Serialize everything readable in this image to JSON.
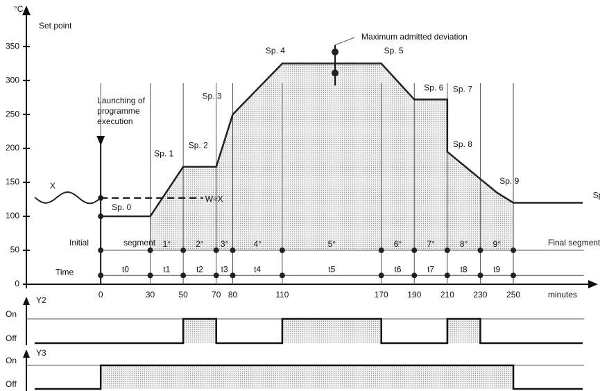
{
  "chart_data": {
    "type": "line",
    "y_unit": "°C",
    "y_label": "Set point",
    "x_label": "minutes",
    "xlim": [
      -40,
      292
    ],
    "ylim": [
      0,
      393
    ],
    "xticks": [
      0,
      30,
      50,
      70,
      80,
      110,
      170,
      190,
      210,
      230,
      250
    ],
    "yticks": [
      0,
      50,
      100,
      150,
      200,
      250,
      300,
      350
    ],
    "series": [
      {
        "name": "Set point",
        "color": "#222222",
        "x": [
          0,
          30,
          50,
          70,
          80,
          110,
          170,
          190,
          210,
          210,
          240,
          250,
          292
        ],
        "values": [
          100,
          100,
          173,
          173,
          250,
          325,
          325,
          272,
          272,
          195,
          135,
          120,
          120
        ],
        "point_labels": [
          "Sp. 0",
          null,
          "Sp. 1",
          "Sp. 2",
          "Sp. 3",
          "Sp. 4",
          "Sp. 5",
          "Sp. 6",
          "Sp. 7",
          "Sp. 8",
          "Sp. 9",
          null,
          "Sp. F."
        ]
      }
    ],
    "process_value": {
      "name": "X",
      "label": "W≈X",
      "x": [
        -40,
        0,
        62
      ],
      "values": [
        128,
        127,
        127
      ]
    },
    "deviation": {
      "label": "Maximum admitted deviation",
      "x": 142,
      "upper": 342,
      "center": 325,
      "lower": 311
    },
    "launch": {
      "label": [
        "Launching of",
        "programme",
        "execution"
      ],
      "x": 0
    },
    "segment_row": {
      "value": 50,
      "start_label": "Initial",
      "start_label2": "segment",
      "end_label": "Final segment",
      "labels": [
        "1°",
        "2°",
        "3°",
        "4°",
        "5°",
        "6°",
        "7°",
        "8°",
        "9°"
      ]
    },
    "time_row": {
      "value": 13,
      "label": "Time",
      "labels": [
        "t0",
        "t1",
        "t2",
        "t3",
        "t4",
        "t5",
        "t6",
        "t7",
        "t8",
        "t9"
      ]
    },
    "digital": [
      {
        "name": "Y2",
        "on_label": "On",
        "off_label": "Off",
        "x": [
          -40,
          50,
          70,
          110,
          170,
          210,
          230
        ],
        "values": [
          0,
          1,
          0,
          1,
          0,
          1,
          0
        ]
      },
      {
        "name": "Y3",
        "on_label": "On",
        "off_label": "Off",
        "x": [
          -40,
          0,
          250
        ],
        "values": [
          0,
          1,
          0
        ]
      }
    ]
  }
}
